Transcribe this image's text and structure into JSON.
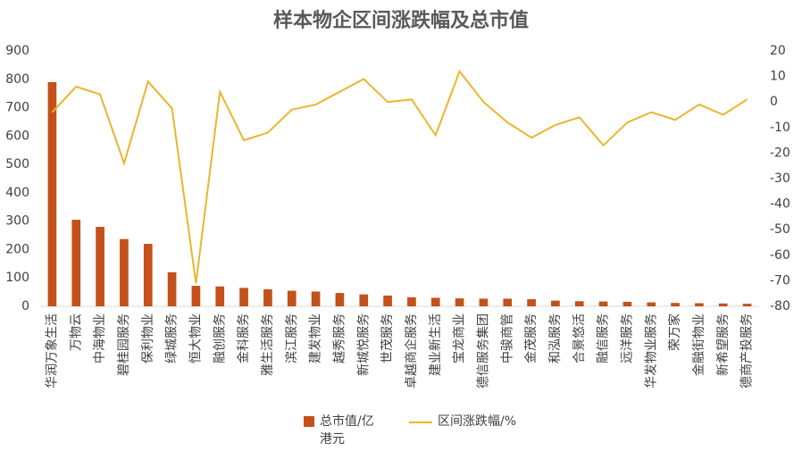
{
  "chart_data": {
    "type": "bar-line",
    "title": "样本物企区间涨跌幅及总市值",
    "categories": [
      "华润万象生活",
      "万物云",
      "中海物业",
      "碧桂园服务",
      "保利物业",
      "绿城服务",
      "恒大物业",
      "融创服务",
      "金科服务",
      "雅生活服务",
      "滨江服务",
      "建发物业",
      "越秀服务",
      "新城悦服务",
      "世茂服务",
      "卓越商企服务",
      "建业新生活",
      "宝龙商业",
      "德信服务集团",
      "中骏商管",
      "金茂服务",
      "和泓服务",
      "合景悠活",
      "融信服务",
      "远洋服务",
      "华发物业服务",
      "荣万家",
      "金融街物业",
      "新希望服务",
      "德商产投服务"
    ],
    "series": [
      {
        "name": "总市值/亿港元",
        "type": "bar",
        "color": "#c4501a",
        "values": [
          790,
          305,
          280,
          237,
          220,
          120,
          72,
          70,
          65,
          60,
          55,
          52,
          47,
          42,
          38,
          32,
          30,
          28,
          27,
          27,
          25,
          20,
          18,
          17,
          16,
          14,
          12,
          11,
          10,
          9
        ]
      },
      {
        "name": "区间涨跌幅/%",
        "type": "line",
        "axis": "y2",
        "color": "#ebb52e",
        "values": [
          -4,
          6,
          3,
          -24,
          8,
          -2.5,
          -71,
          4,
          -15,
          -12,
          -3,
          -1,
          4,
          9,
          0,
          1,
          -13,
          12,
          0,
          -8,
          -14,
          -9,
          -6,
          -17,
          -8,
          -4,
          -7,
          -1,
          -5,
          1
        ]
      }
    ],
    "ylim": [
      0,
      900
    ],
    "yticks": [
      0,
      100,
      200,
      300,
      400,
      500,
      600,
      700,
      800,
      900
    ],
    "y2lim": [
      -80,
      20
    ],
    "y2ticks": [
      -80,
      -70,
      -60,
      -50,
      -40,
      -30,
      -20,
      -10,
      0,
      10,
      20
    ],
    "grid": false
  }
}
